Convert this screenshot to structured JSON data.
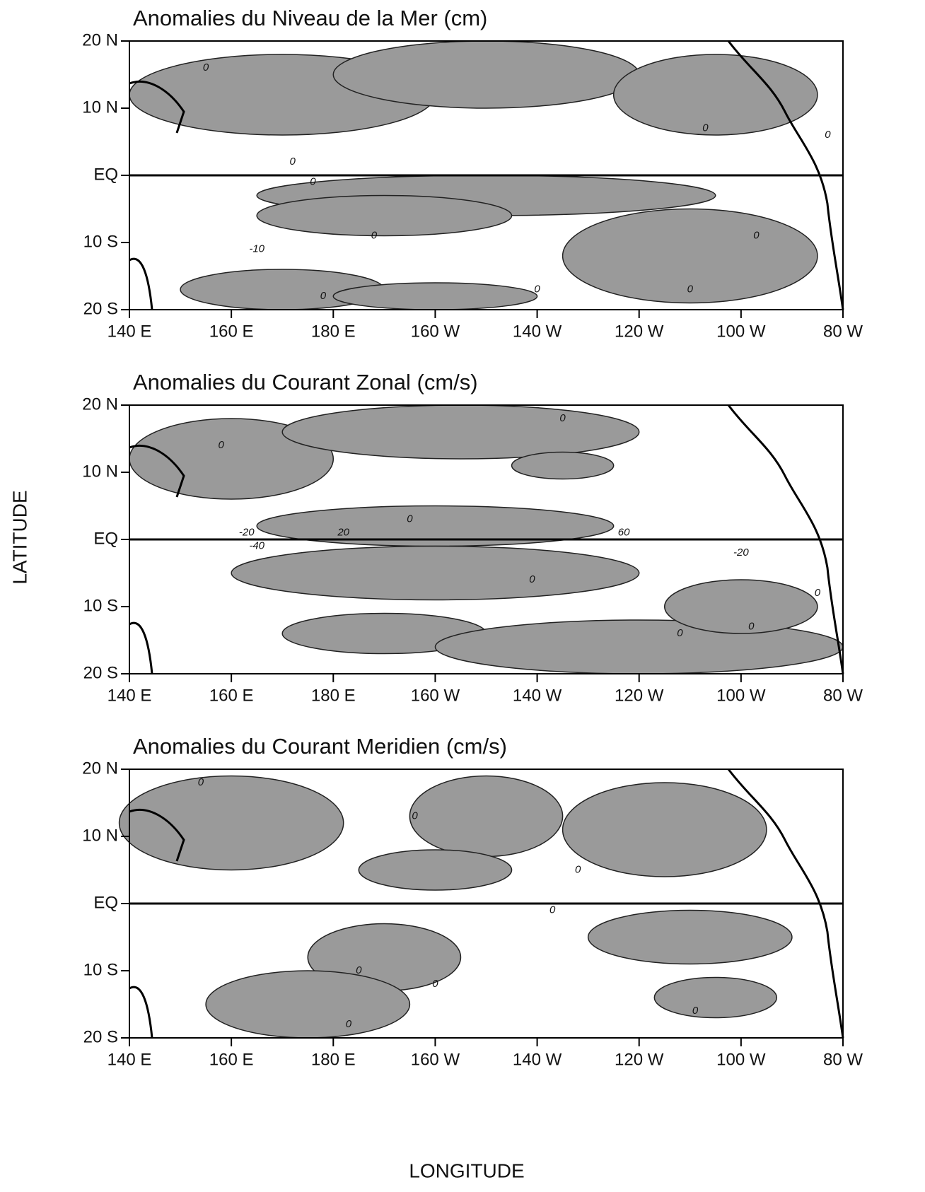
{
  "figure": {
    "xlabel": "LONGITUDE",
    "ylabel": "LATITUDE"
  },
  "chart_data": [
    {
      "type": "contour",
      "title": "Anomalies du Niveau de la Mer (cm)",
      "xlim": [
        140,
        280
      ],
      "ylim": [
        -20,
        20
      ],
      "xticks": [
        {
          "value": 140,
          "label": "140 E"
        },
        {
          "value": 160,
          "label": "160 E"
        },
        {
          "value": 180,
          "label": "180 E"
        },
        {
          "value": 200,
          "label": "160 W"
        },
        {
          "value": 220,
          "label": "140 W"
        },
        {
          "value": 240,
          "label": "120 W"
        },
        {
          "value": 260,
          "label": "100 W"
        },
        {
          "value": 280,
          "label": "80 W"
        }
      ],
      "yticks": [
        {
          "value": 20,
          "label": "20 N"
        },
        {
          "value": 10,
          "label": "10 N"
        },
        {
          "value": 0,
          "label": "EQ"
        },
        {
          "value": -10,
          "label": "10 S"
        },
        {
          "value": -20,
          "label": "20 S"
        }
      ],
      "annotations": [
        "0",
        "0",
        "0",
        "0",
        "0",
        "-10",
        "0",
        "0",
        "0",
        "0",
        "0"
      ]
    },
    {
      "type": "contour",
      "title": "Anomalies du Courant Zonal (cm/s)",
      "xlim": [
        140,
        280
      ],
      "ylim": [
        -20,
        20
      ],
      "xticks": [
        {
          "value": 140,
          "label": "140 E"
        },
        {
          "value": 160,
          "label": "160 E"
        },
        {
          "value": 180,
          "label": "180 E"
        },
        {
          "value": 200,
          "label": "160 W"
        },
        {
          "value": 220,
          "label": "140 W"
        },
        {
          "value": 240,
          "label": "120 W"
        },
        {
          "value": 260,
          "label": "100 W"
        },
        {
          "value": 280,
          "label": "80 W"
        }
      ],
      "yticks": [
        {
          "value": 20,
          "label": "20 N"
        },
        {
          "value": 10,
          "label": "10 N"
        },
        {
          "value": 0,
          "label": "EQ"
        },
        {
          "value": -10,
          "label": "10 S"
        },
        {
          "value": -20,
          "label": "20 S"
        }
      ],
      "annotations": [
        "0",
        "0",
        "0",
        "-20",
        "-40",
        "20",
        "60",
        "-20",
        "0",
        "0",
        "0",
        "0"
      ]
    },
    {
      "type": "contour",
      "title": "Anomalies du Courant Meridien (cm/s)",
      "xlim": [
        140,
        280
      ],
      "ylim": [
        -20,
        20
      ],
      "xticks": [
        {
          "value": 140,
          "label": "140 E"
        },
        {
          "value": 160,
          "label": "160 E"
        },
        {
          "value": 180,
          "label": "180 E"
        },
        {
          "value": 200,
          "label": "160 W"
        },
        {
          "value": 220,
          "label": "140 W"
        },
        {
          "value": 240,
          "label": "120 W"
        },
        {
          "value": 260,
          "label": "100 W"
        },
        {
          "value": 280,
          "label": "80 W"
        }
      ],
      "yticks": [
        {
          "value": 20,
          "label": "20 N"
        },
        {
          "value": 10,
          "label": "10 N"
        },
        {
          "value": 0,
          "label": "EQ"
        },
        {
          "value": -10,
          "label": "10 S"
        },
        {
          "value": -20,
          "label": "20 S"
        }
      ],
      "annotations": [
        "0",
        "0",
        "0",
        "0",
        "0",
        "0",
        "0",
        "0"
      ]
    }
  ]
}
